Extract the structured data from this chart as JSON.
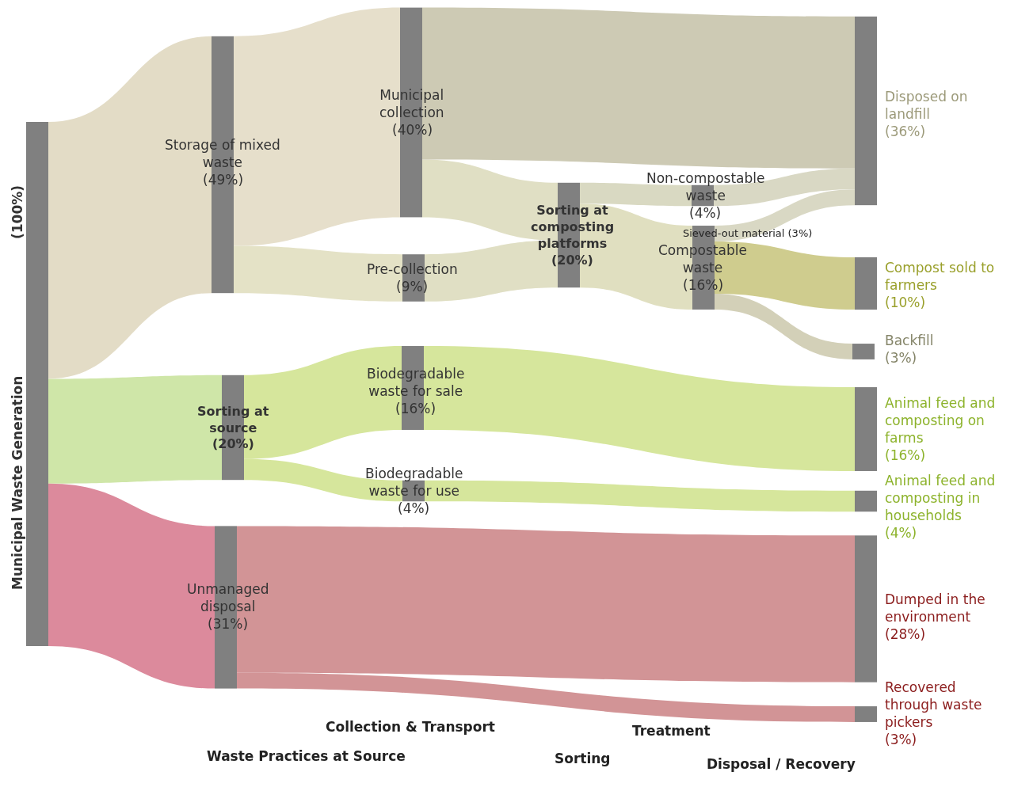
{
  "chart_data": {
    "type": "other",
    "categories": [
      "Municipal Waste Generation",
      "Storage of mixed waste",
      "Sorting at source",
      "Unmanaged disposal",
      "Municipal collection",
      "Pre-collection",
      "Biodegradable waste for sale",
      "Biodegradable waste for use",
      "Sorting at composting platforms",
      "Non-compostable waste",
      "Compostable waste",
      "Disposed on landfill",
      "Compost sold to farmers",
      "Backfill",
      "Animal feed and composting on farms",
      "Animal feed and composting in households",
      "Dumped in the environment",
      "Recovered through waste pickers"
    ],
    "values": [
      100,
      49,
      20,
      31,
      40,
      9,
      16,
      4,
      20,
      4,
      16,
      36,
      10,
      3,
      16,
      4,
      28,
      3
    ],
    "value_labels": [
      "(100%)",
      "(49%)",
      "(20%)",
      "(31%)",
      "(40%)",
      "(9%)",
      "(16%)",
      "(4%)",
      "(20%)",
      "(4%)",
      "(16%)",
      "(36%)",
      "(10%)",
      "(3%)",
      "(16%)",
      "(4%)",
      "(28%)",
      "(3%)"
    ],
    "color": "#808080",
    "series": [
      {
        "values": [
          null,
          null,
          null,
          null,
          null,
          null,
          null,
          null,
          null,
          null,
          null,
          null,
          null,
          null,
          null,
          null,
          null,
          null
        ],
        "colors": [
          null,
          "#e3dcc6",
          "#cfe6a8",
          "#dc8a9c",
          null,
          null,
          null,
          null,
          null,
          null,
          null,
          null,
          null,
          null,
          null,
          null,
          null,
          null
        ]
      },
      {
        "values": [
          null,
          null,
          null,
          null,
          null,
          null,
          null,
          null,
          null,
          null,
          null,
          null,
          null,
          null,
          null,
          null,
          null,
          null
        ],
        "colors": [
          null,
          null,
          null,
          null,
          "#e6dfcb",
          "#e4e2c6",
          null,
          null,
          null,
          null,
          null,
          null,
          null,
          null,
          null,
          null,
          null,
          null
        ]
      },
      {
        "values": [
          null,
          null,
          null,
          null,
          null,
          null,
          null,
          null,
          null,
          null,
          null,
          null,
          null,
          null,
          null,
          null,
          null,
          null
        ],
        "colors": [
          null,
          null,
          null,
          null,
          null,
          null,
          "#d6e69c",
          "#d6e69c",
          null,
          null,
          null,
          null,
          null,
          null,
          null,
          null,
          null,
          null
        ]
      },
      {
        "values": [
          null,
          null,
          null,
          null,
          null,
          null,
          null,
          null,
          null,
          null,
          null,
          null,
          null,
          null,
          null,
          null,
          null,
          null
        ],
        "colors": [
          null,
          null,
          null,
          null,
          null,
          null,
          null,
          null,
          null,
          null,
          null,
          null,
          null,
          null,
          null,
          null,
          "#d29496",
          "#d29496"
        ]
      },
      {
        "values": [
          null,
          null,
          null,
          null,
          null,
          null,
          null,
          null,
          null,
          null,
          null,
          null,
          null,
          null,
          null,
          null,
          null,
          null
        ],
        "colors": [
          null,
          null,
          null,
          null,
          null,
          null,
          null,
          null,
          "#e0dfc4",
          null,
          null,
          "#cdcab4",
          null,
          null,
          null,
          null,
          null,
          null
        ]
      },
      {
        "values": [
          null,
          null,
          null,
          null,
          null,
          null,
          null,
          null,
          null,
          null,
          null,
          null,
          null,
          null,
          null,
          null,
          null,
          null
        ],
        "colors": [
          null,
          null,
          null,
          null,
          null,
          null,
          null,
          null,
          "#e0dfc4",
          null,
          null,
          null,
          null,
          null,
          null,
          null,
          null,
          null
        ]
      },
      {
        "values": [
          null,
          null,
          null,
          null,
          null,
          null,
          null,
          null,
          null,
          null,
          null,
          null,
          null,
          null,
          null,
          null,
          null,
          null
        ],
        "colors": [
          null,
          null,
          null,
          null,
          null,
          null,
          null,
          null,
          null,
          null,
          null,
          null,
          null,
          null,
          "#d6e69c",
          null,
          null,
          null
        ]
      },
      {
        "values": [
          null,
          null,
          null,
          null,
          null,
          null,
          null,
          null,
          null,
          null,
          null,
          null,
          null,
          null,
          null,
          null,
          null,
          null
        ],
        "colors": [
          null,
          null,
          null,
          null,
          null,
          null,
          null,
          null,
          null,
          null,
          null,
          null,
          null,
          null,
          null,
          "#d6e69c",
          null,
          null
        ]
      },
      {
        "values": [
          null,
          null,
          null,
          null,
          null,
          null,
          null,
          null,
          null,
          null,
          null,
          null,
          null,
          null,
          null,
          null,
          null,
          null
        ],
        "colors": [
          null,
          null,
          null,
          null,
          null,
          null,
          null,
          null,
          null,
          "#d9d9c2",
          "#e0dfc0",
          null,
          null,
          null,
          null,
          null,
          null,
          null
        ]
      },
      {
        "values": [
          null,
          null,
          null,
          null,
          null,
          null,
          null,
          null,
          null,
          null,
          null,
          null,
          null,
          null,
          null,
          null,
          null,
          null
        ],
        "colors": [
          null,
          null,
          null,
          null,
          null,
          null,
          null,
          null,
          null,
          null,
          null,
          "#d9d8c4",
          null,
          null,
          null,
          null,
          null,
          null
        ]
      },
      {
        "values": [
          null,
          null,
          null,
          null,
          null,
          null,
          null,
          null,
          null,
          null,
          null,
          null,
          null,
          null,
          null,
          null,
          null,
          null
        ],
        "colors": [
          null,
          null,
          null,
          null,
          null,
          null,
          null,
          null,
          null,
          null,
          null,
          "#d9d8c4",
          "#cfcc8e",
          "#d3d0b8",
          null,
          null,
          null,
          null
        ]
      }
    ],
    "annotations": [
      "Sieved-out material (3%)",
      "Waste Practices at Source",
      "Collection & Transport",
      "Sorting",
      "Treatment",
      "Disposal / Recovery"
    ]
  }
}
